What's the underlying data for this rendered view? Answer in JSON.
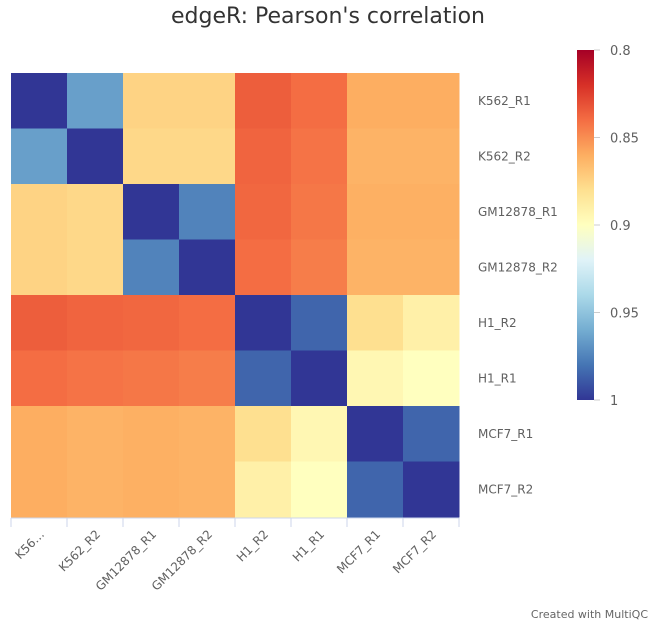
{
  "chart_data": {
    "type": "heatmap",
    "title": "edgeR: Pearson's correlation",
    "x_categories": [
      "K56…",
      "K562_R2",
      "GM12878_R1",
      "GM12878_R2",
      "H1_R2",
      "H1_R1",
      "MCF7_R1",
      "MCF7_R2"
    ],
    "y_categories": [
      "K562_R1",
      "K562_R2",
      "GM12878_R1",
      "GM12878_R2",
      "H1_R2",
      "H1_R1",
      "MCF7_R1",
      "MCF7_R2"
    ],
    "values": [
      [
        1.0,
        0.965,
        0.875,
        0.875,
        0.835,
        0.84,
        0.86,
        0.86
      ],
      [
        0.965,
        1.0,
        0.877,
        0.877,
        0.837,
        0.842,
        0.862,
        0.862
      ],
      [
        0.875,
        0.877,
        1.0,
        0.975,
        0.838,
        0.843,
        0.861,
        0.861
      ],
      [
        0.875,
        0.877,
        0.975,
        1.0,
        0.84,
        0.845,
        0.862,
        0.862
      ],
      [
        0.835,
        0.837,
        0.838,
        0.84,
        1.0,
        0.985,
        0.88,
        0.89
      ],
      [
        0.84,
        0.842,
        0.843,
        0.845,
        0.985,
        1.0,
        0.895,
        0.9
      ],
      [
        0.86,
        0.862,
        0.861,
        0.862,
        0.88,
        0.895,
        1.0,
        0.985
      ],
      [
        0.86,
        0.862,
        0.861,
        0.862,
        0.89,
        0.9,
        0.985,
        1.0
      ]
    ],
    "colorbar": {
      "min": 0.8,
      "max": 1,
      "ticks": [
        "0.8",
        "0.85",
        "0.9",
        "0.95",
        "1"
      ],
      "colors": [
        "#a50026",
        "#d73027",
        "#f46d43",
        "#fdae61",
        "#fee090",
        "#ffffbf",
        "#e0f3f8",
        "#abd9e9",
        "#74add1",
        "#4575b4",
        "#313695"
      ]
    }
  },
  "footer": {
    "credit": "Created with MultiQC"
  }
}
